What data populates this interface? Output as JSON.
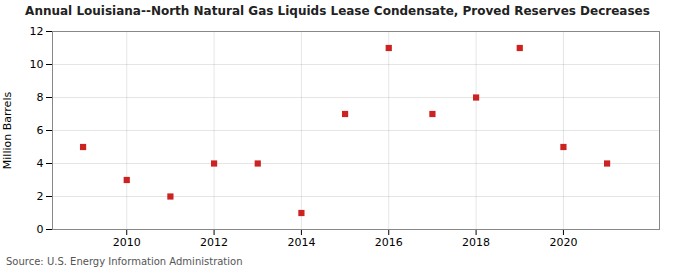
{
  "chart_data": {
    "type": "scatter",
    "title": "Annual Louisiana--North Natural Gas Liquids Lease Condensate, Proved Reserves Decreases",
    "ylabel": "Million Barrels",
    "annotation": "Source: U.S. Energy Information Administration",
    "x": [
      2009,
      2010,
      2011,
      2012,
      2013,
      2014,
      2015,
      2016,
      2017,
      2018,
      2019,
      2020,
      2021
    ],
    "values": [
      5.0,
      3.0,
      2.0,
      4.0,
      4.0,
      1.0,
      7.0,
      11.0,
      7.0,
      8.0,
      11.0,
      5.0,
      4.0
    ],
    "color": "#cc2222",
    "marker": "square",
    "xlim": [
      2008.3,
      2022.2
    ],
    "xticks": [
      2010,
      2012,
      2014,
      2016,
      2018,
      2020
    ],
    "ylim": [
      0,
      12
    ],
    "yticks": [
      0,
      2,
      4,
      6,
      8,
      10,
      12
    ],
    "grid": true
  }
}
